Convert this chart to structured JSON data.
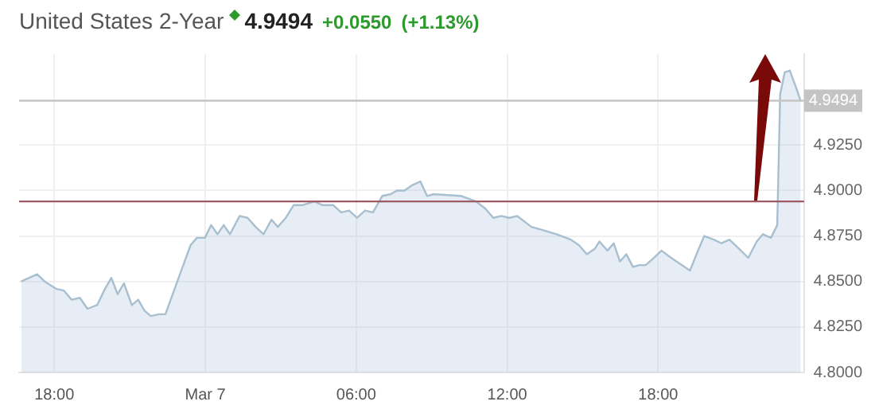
{
  "chart_data": {
    "type": "area",
    "title": "United States 2-Year",
    "annotations": [
      "4.9494",
      "+0.0550",
      "(+1.13%)"
    ],
    "x": [
      "--03-06T16:41",
      "--03-06T17:19",
      "--03-06T17:37",
      "--03-06T18:04",
      "--03-06T18:23",
      "--03-06T18:41",
      "--03-06T19:01",
      "--03-06T19:19",
      "--03-06T19:42",
      "--03-06T20:01",
      "--03-06T20:16",
      "--03-06T20:31",
      "--03-06T20:46",
      "--03-06T21:05",
      "--03-06T21:20",
      "--03-06T21:35",
      "--03-06T21:50",
      "--03-06T22:10",
      "--03-06T22:25",
      "--03-06T22:47",
      "--03-06T23:06",
      "--03-06T23:25",
      "--03-06T23:40",
      "--03-06T23:59",
      "--03-07T00:14",
      "--03-07T00:29",
      "--03-07T00:44",
      "--03-07T00:59",
      "--03-07T01:22",
      "--03-07T01:41",
      "--03-07T02:00",
      "--03-07T02:19",
      "--03-07T02:38",
      "--03-07T02:53",
      "--03-07T03:12",
      "--03-07T03:31",
      "--03-07T03:53",
      "--03-07T04:20",
      "--03-07T04:39",
      "--03-07T05:05",
      "--03-07T05:24",
      "--03-07T05:43",
      "--03-07T06:02",
      "--03-07T06:21",
      "--03-07T06:40",
      "--03-07T07:02",
      "--03-07T07:22",
      "--03-07T07:37",
      "--03-07T07:55",
      "--03-07T08:14",
      "--03-07T08:33",
      "--03-07T08:49",
      "--03-07T09:04",
      "--03-07T10:11",
      "--03-07T10:46",
      "--03-07T11:08",
      "--03-07T11:27",
      "--03-07T11:46",
      "--03-07T12:05",
      "--03-07T12:24",
      "--03-07T12:58",
      "--03-07T13:28",
      "--03-07T13:58",
      "--03-07T14:32",
      "--03-07T14:51",
      "--03-07T15:10",
      "--03-07T15:29",
      "--03-07T15:40",
      "--03-07T15:59",
      "--03-07T16:14",
      "--03-07T16:29",
      "--03-07T16:44",
      "--03-07T17:00",
      "--03-07T17:15",
      "--03-07T17:30",
      "--03-07T17:45",
      "--03-07T18:08",
      "--03-07T18:31",
      "--03-07T18:57",
      "--03-07T19:16",
      "--03-07T19:35",
      "--03-07T19:50",
      "--03-07T20:13",
      "--03-07T20:31",
      "--03-07T20:50",
      "--03-07T21:13",
      "--03-07T21:35",
      "--03-07T21:55",
      "--03-07T22:10",
      "--03-07T22:29",
      "--03-07T22:44",
      "--03-07T22:51",
      "--03-07T23:02",
      "--03-07T23:14",
      "--03-07T23:33",
      "--03-07T23:40"
    ],
    "series": [
      {
        "color": "#a8bfd0",
        "values": [
          4.85,
          4.854,
          4.85,
          4.846,
          4.845,
          4.84,
          4.841,
          4.835,
          4.837,
          4.846,
          4.852,
          4.843,
          4.849,
          4.837,
          4.84,
          4.834,
          4.831,
          4.832,
          4.832,
          4.846,
          4.858,
          4.87,
          4.874,
          4.874,
          4.881,
          4.876,
          4.881,
          4.876,
          4.886,
          4.885,
          4.88,
          4.876,
          4.884,
          4.88,
          4.885,
          4.892,
          4.892,
          4.894,
          4.892,
          4.892,
          4.888,
          4.889,
          4.885,
          4.889,
          4.888,
          4.897,
          4.898,
          4.9,
          4.9,
          4.903,
          4.905,
          4.897,
          4.898,
          4.897,
          4.894,
          4.89,
          4.885,
          4.886,
          4.885,
          4.886,
          4.88,
          4.878,
          4.876,
          4.873,
          4.87,
          4.865,
          4.868,
          4.872,
          4.867,
          4.871,
          4.861,
          4.865,
          4.858,
          4.859,
          4.859,
          4.862,
          4.867,
          4.863,
          4.859,
          4.856,
          4.867,
          4.875,
          4.873,
          4.871,
          4.873,
          4.868,
          4.863,
          4.872,
          4.876,
          4.874,
          4.881,
          4.953,
          4.965,
          4.966,
          4.954,
          4.949
        ]
      }
    ],
    "xlim": [
      "--03-06T16:36",
      "--03-07T23:48"
    ],
    "xticks": [
      {
        "value": "--03-06T18:00",
        "label": "18:00"
      },
      {
        "value": "--03-07T00:00",
        "label": "Mar 7"
      },
      {
        "value": "--03-07T06:00",
        "label": "06:00"
      },
      {
        "value": "--03-07T12:00",
        "label": "12:00"
      },
      {
        "value": "--03-07T18:00",
        "label": "18:00"
      }
    ],
    "ylim": [
      4.8,
      4.975
    ],
    "yticks": [
      {
        "value": 4.8,
        "label": "4.8000"
      },
      {
        "value": 4.825,
        "label": "4.8250"
      },
      {
        "value": 4.85,
        "label": "4.8500"
      },
      {
        "value": 4.875,
        "label": "4.8750"
      },
      {
        "value": 4.9,
        "label": "4.9000"
      },
      {
        "value": 4.925,
        "label": "4.9250"
      }
    ],
    "ref_lines": [
      {
        "axis": "y",
        "value": 4.9494,
        "label": "4.9494",
        "color": "#c4c4c4"
      },
      {
        "axis": "y",
        "value": 4.894,
        "color": "#a05a66"
      }
    ],
    "grid": true,
    "legend": false,
    "marker": "none",
    "line_style": "solid"
  }
}
